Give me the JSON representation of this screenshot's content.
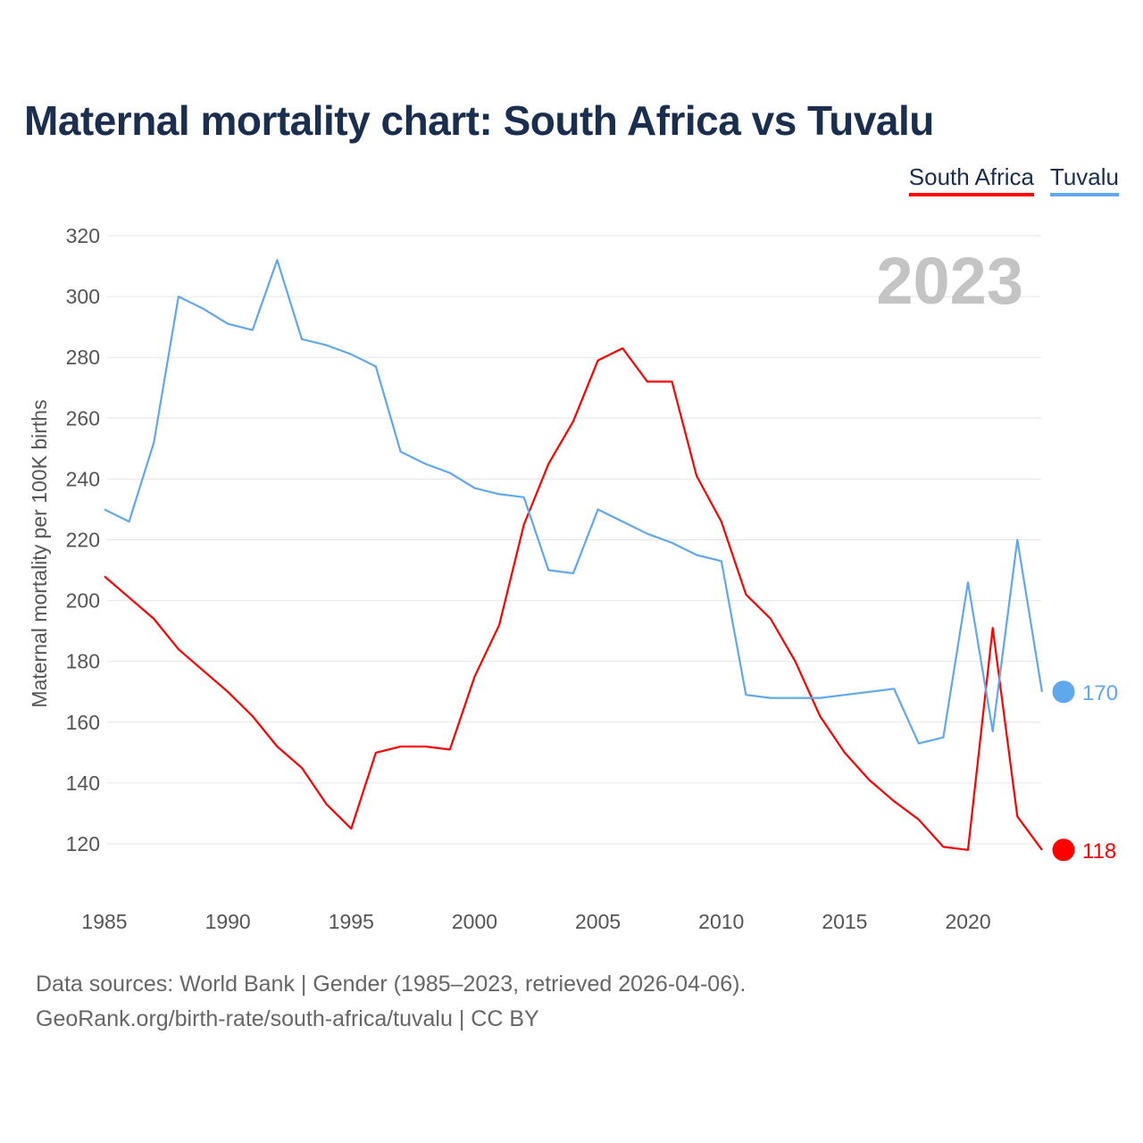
{
  "chart_data": {
    "type": "line",
    "title": "Maternal mortality chart: South Africa vs Tuvalu",
    "ylabel": "Maternal mortality per 100K births",
    "xlabel": "",
    "ylim": [
      100,
      320
    ],
    "xlim": [
      1985,
      2023
    ],
    "yticks": [
      120,
      140,
      160,
      180,
      200,
      220,
      240,
      260,
      280,
      300,
      320
    ],
    "xticks": [
      1985,
      1990,
      1995,
      2000,
      2005,
      2010,
      2015,
      2020
    ],
    "grid": true,
    "year_label": "2023",
    "legend_placement": "top-right",
    "x": [
      1985,
      1986,
      1987,
      1988,
      1989,
      1990,
      1991,
      1992,
      1993,
      1994,
      1995,
      1996,
      1997,
      1998,
      1999,
      2000,
      2001,
      2002,
      2003,
      2004,
      2005,
      2006,
      2007,
      2008,
      2009,
      2010,
      2011,
      2012,
      2013,
      2014,
      2015,
      2016,
      2017,
      2018,
      2019,
      2020,
      2021,
      2022,
      2023
    ],
    "series": [
      {
        "name": "South Africa",
        "color": "#ff0000",
        "end_label": "118",
        "values": [
          208,
          201,
          194,
          184,
          177,
          170,
          162,
          152,
          145,
          133,
          125,
          150,
          152,
          152,
          151,
          175,
          192,
          225,
          245,
          259,
          279,
          283,
          272,
          272,
          241,
          226,
          202,
          194,
          180,
          162,
          150,
          141,
          134,
          128,
          119,
          118,
          191,
          129,
          118
        ]
      },
      {
        "name": "Tuvalu",
        "color": "#5fa8eb",
        "end_label": "170",
        "values": [
          230,
          226,
          252,
          300,
          296,
          291,
          289,
          312,
          286,
          284,
          281,
          277,
          249,
          245,
          242,
          237,
          235,
          234,
          210,
          209,
          230,
          226,
          222,
          219,
          215,
          213,
          169,
          168,
          168,
          168,
          169,
          170,
          171,
          153,
          155,
          206,
          157,
          220,
          170
        ]
      }
    ]
  },
  "legend": {
    "south_africa": "South Africa",
    "tuvalu": "Tuvalu"
  },
  "footer": {
    "line1": "Data sources: World Bank | Gender (1985–2023, retrieved 2026-04-06).",
    "line2": "GeoRank.org/birth-rate/south-africa/tuvalu | CC BY"
  }
}
